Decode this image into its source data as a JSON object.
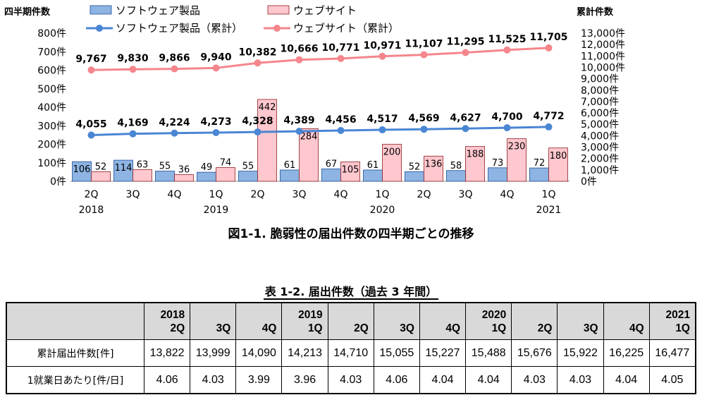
{
  "chart_data": {
    "type": "bar",
    "title": "図1-1. 脆弱性の届出件数の四半期ごとの推移",
    "ylabel_left": "四半期件数",
    "ylabel_right": "累計件数",
    "left_ticks": [
      "800件",
      "700件",
      "600件",
      "500件",
      "400件",
      "300件",
      "200件",
      "100件",
      "0件"
    ],
    "right_ticks": [
      "13,000件",
      "12,000件",
      "11,000件",
      "10,000件",
      "9,000件",
      "8,000件",
      "7,000件",
      "6,000件",
      "5,000件",
      "4,000件",
      "3,000件",
      "2,000件",
      "1,000件",
      "0件"
    ],
    "ylim_left": [
      0,
      800
    ],
    "ylim_right": [
      0,
      13000
    ],
    "categories": [
      "2Q",
      "3Q",
      "4Q",
      "1Q",
      "2Q",
      "3Q",
      "4Q",
      "1Q",
      "2Q",
      "3Q",
      "4Q",
      "1Q"
    ],
    "year_labels": [
      {
        "label": "2018",
        "index": 0
      },
      {
        "label": "2019",
        "index": 3
      },
      {
        "label": "2020",
        "index": 7
      },
      {
        "label": "2021",
        "index": 11
      }
    ],
    "series": [
      {
        "name": "ソフトウェア製品",
        "kind": "bar",
        "axis": "left",
        "color": "#8db4e2",
        "values": [
          106,
          114,
          55,
          49,
          55,
          61,
          67,
          61,
          52,
          58,
          73,
          72
        ]
      },
      {
        "name": "ウェブサイト",
        "kind": "bar",
        "axis": "left",
        "color": "#ffc7ce",
        "values": [
          52,
          63,
          36,
          74,
          442,
          284,
          105,
          200,
          136,
          188,
          230,
          180
        ]
      },
      {
        "name": "ソフトウェア製品（累計）",
        "kind": "line",
        "axis": "right",
        "color": "#4a86d4",
        "values": [
          4055,
          4169,
          4224,
          4273,
          4328,
          4389,
          4456,
          4517,
          4569,
          4627,
          4700,
          4772
        ],
        "labels": [
          "4,055",
          "4,169",
          "4,224",
          "4,273",
          "4,328",
          "4,389",
          "4,456",
          "4,517",
          "4,569",
          "4,627",
          "4,700",
          "4,772"
        ]
      },
      {
        "name": "ウェブサイト（累計）",
        "kind": "line",
        "axis": "right",
        "color": "#f4868c",
        "values": [
          9767,
          9830,
          9866,
          9940,
          10382,
          10666,
          10771,
          10971,
          11107,
          11295,
          11525,
          11705
        ],
        "labels": [
          "9,767",
          "9,830",
          "9,866",
          "9,940",
          "10,382",
          "10,666",
          "10,771",
          "10,971",
          "11,107",
          "11,295",
          "11,525",
          "11,705"
        ]
      }
    ],
    "legend": "top",
    "grid": false
  },
  "table": {
    "title": "表 1-2.  届出件数（過去 3 年間）",
    "header_lines": [
      [
        "2018",
        "2Q"
      ],
      [
        "",
        "3Q"
      ],
      [
        "",
        "4Q"
      ],
      [
        "2019",
        "1Q"
      ],
      [
        "",
        "2Q"
      ],
      [
        "",
        "3Q"
      ],
      [
        "",
        "4Q"
      ],
      [
        "2020",
        "1Q"
      ],
      [
        "",
        "2Q"
      ],
      [
        "",
        "3Q"
      ],
      [
        "",
        "4Q"
      ],
      [
        "2021",
        "1Q"
      ]
    ],
    "rows": [
      {
        "label": "累計届出件数[件]",
        "values": [
          "13,822",
          "13,999",
          "14,090",
          "14,213",
          "14,710",
          "15,055",
          "15,227",
          "15,488",
          "15,676",
          "15,922",
          "16,225",
          "16,477"
        ]
      },
      {
        "label": "1就業日あたり[件/日]",
        "values": [
          "4.06",
          "4.03",
          "3.99",
          "3.96",
          "4.03",
          "4.06",
          "4.04",
          "4.04",
          "4.03",
          "4.03",
          "4.04",
          "4.05"
        ]
      }
    ]
  }
}
